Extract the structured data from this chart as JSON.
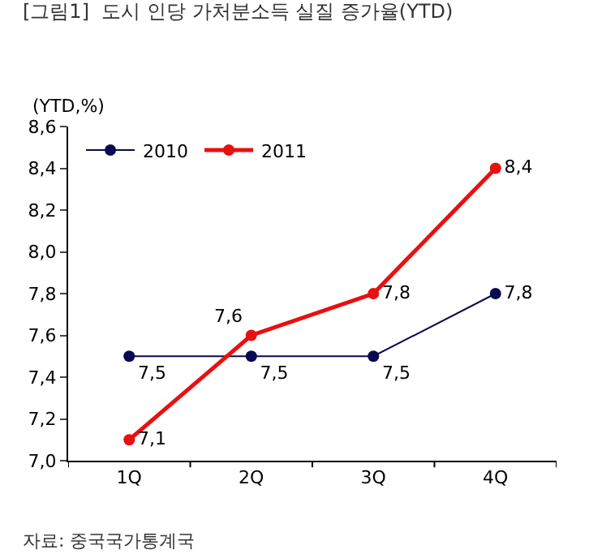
{
  "chart_data": {
    "type": "line",
    "title": "[그림1]  도시 인당 가처분소득 실질 증가율(YTD)",
    "ylabel": "(YTD,%)",
    "annotations": [
      "자료: 중국국가통계국"
    ],
    "categories": [
      "1Q",
      "2Q",
      "3Q",
      "4Q"
    ],
    "series": [
      {
        "name": "2010",
        "color": "#0a0a50",
        "values": [
          7.5,
          7.5,
          7.5,
          7.8
        ],
        "value_labels": [
          "7,5",
          "7,5",
          "7,5",
          "7,8"
        ]
      },
      {
        "name": "2011",
        "color": "#e81010",
        "values": [
          7.1,
          7.6,
          7.8,
          8.4
        ],
        "value_labels": [
          "7,1",
          "7,6",
          "7,8",
          "8,4"
        ]
      }
    ],
    "ylim": [
      7.0,
      8.6
    ],
    "yticks": [
      {
        "value": 7.0,
        "label": "7,0"
      },
      {
        "value": 7.2,
        "label": "7,2"
      },
      {
        "value": 7.4,
        "label": "7,4"
      },
      {
        "value": 7.6,
        "label": "7,6"
      },
      {
        "value": 7.8,
        "label": "7,8"
      },
      {
        "value": 8.0,
        "label": "8,0"
      },
      {
        "value": 8.2,
        "label": "8,2"
      },
      {
        "value": 8.4,
        "label": "8,4"
      },
      {
        "value": 8.6,
        "label": "8,6"
      }
    ],
    "legend": "top left",
    "marker": "circle",
    "line_style": "solid"
  }
}
